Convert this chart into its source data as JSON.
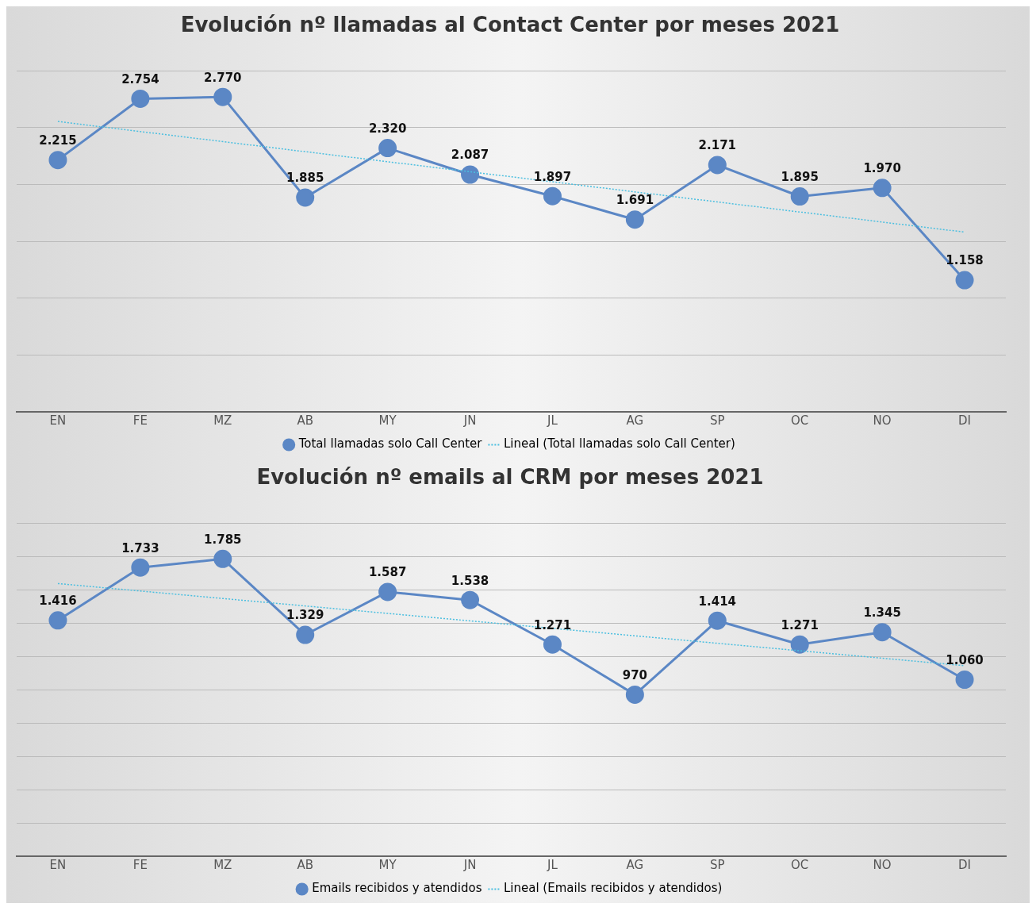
{
  "chart_data": [
    {
      "type": "line",
      "title": "Evolución nº llamadas al Contact Center por meses 2021",
      "categories": [
        "EN",
        "FE",
        "MZ",
        "AB",
        "MY",
        "JN",
        "JL",
        "AG",
        "SP",
        "OC",
        "NO",
        "DI"
      ],
      "series": [
        {
          "name": "Total llamadas solo Call Center",
          "color": "#5b87c5",
          "marker": "circle",
          "line_style": "solid",
          "values": [
            2215,
            2754,
            2770,
            1885,
            2320,
            2087,
            1897,
            1691,
            2171,
            1895,
            1970,
            1158
          ],
          "value_labels": [
            "2.215",
            "2.754",
            "2.770",
            "1.885",
            "2.320",
            "2.087",
            "1.897",
            "1.691",
            "2.171",
            "1.895",
            "1.970",
            "1.158"
          ]
        },
        {
          "name": "Lineal (Total llamadas solo Call Center)",
          "type": "line",
          "color": "#4bbfe0",
          "marker": "none",
          "line_style": "dotted",
          "x": [
            "EN",
            "DI"
          ],
          "values": [
            2554,
            1581
          ]
        }
      ],
      "ylim": [
        0,
        3000
      ],
      "yticks": [
        {
          "value": 0,
          "label": null
        },
        {
          "value": 500,
          "label": null
        },
        {
          "value": 1000,
          "label": null
        },
        {
          "value": 1500,
          "label": null
        },
        {
          "value": 2000,
          "label": null
        },
        {
          "value": 2500,
          "label": null
        },
        {
          "value": 3000,
          "label": null
        }
      ],
      "grid": "y",
      "tick_labels": "x",
      "legend": "bottom"
    },
    {
      "type": "line",
      "title": "Evolución nº emails al CRM por meses 2021",
      "categories": [
        "EN",
        "FE",
        "MZ",
        "AB",
        "MY",
        "JN",
        "JL",
        "AG",
        "SP",
        "OC",
        "NO",
        "DI"
      ],
      "series": [
        {
          "name": "Emails recibidos y atendidos",
          "color": "#5b87c5",
          "marker": "circle",
          "line_style": "solid",
          "values": [
            1416,
            1733,
            1785,
            1329,
            1587,
            1538,
            1271,
            970,
            1414,
            1271,
            1345,
            1060
          ],
          "value_labels": [
            "1.416",
            "1.733",
            "1.785",
            "1.329",
            "1.587",
            "1.538",
            "1.271",
            "970",
            "1.414",
            "1.271",
            "1.345",
            "1.060"
          ]
        },
        {
          "name": "Lineal (Emails recibidos y atendidos)",
          "type": "line",
          "color": "#4bbfe0",
          "marker": "none",
          "line_style": "dotted",
          "x": [
            "EN",
            "DI"
          ],
          "values": [
            1637,
            1144
          ]
        }
      ],
      "ylim": [
        0,
        2000
      ],
      "yticks": [
        {
          "value": 0,
          "label": null
        },
        {
          "value": 200,
          "label": null
        },
        {
          "value": 400,
          "label": null
        },
        {
          "value": 600,
          "label": null
        },
        {
          "value": 800,
          "label": null
        },
        {
          "value": 1000,
          "label": null
        },
        {
          "value": 1200,
          "label": null
        },
        {
          "value": 1400,
          "label": null
        },
        {
          "value": 1600,
          "label": null
        },
        {
          "value": 1800,
          "label": null
        },
        {
          "value": 2000,
          "label": null
        }
      ],
      "grid": "y",
      "tick_labels": "x",
      "legend": "bottom"
    }
  ]
}
